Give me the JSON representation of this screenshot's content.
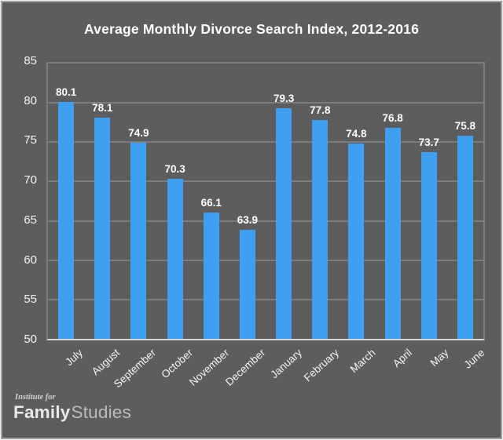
{
  "chart_data": {
    "type": "bar",
    "title": "Average Monthly Divorce Search Index, 2012-2016",
    "categories": [
      "July",
      "August",
      "September",
      "October",
      "November",
      "December",
      "January",
      "February",
      "March",
      "April",
      "May",
      "June"
    ],
    "values": [
      80.1,
      78.1,
      74.9,
      70.3,
      66.1,
      63.9,
      79.3,
      77.8,
      74.8,
      76.8,
      73.7,
      75.8
    ],
    "xlabel": "",
    "ylabel": "",
    "ylim": [
      50,
      85
    ],
    "ytick_step": 5,
    "yticks": [
      85,
      80,
      75,
      70,
      65,
      60,
      55,
      50
    ],
    "grid": true,
    "legend": false,
    "data_labels": true,
    "x_label_rotation_deg": -42,
    "colors": {
      "bar": "#3f9ff0",
      "background": "#5d5d5d",
      "gridline": "#7c7c7c",
      "axis_line": "#d8d8d8",
      "text": "#ffffff"
    }
  },
  "footer": {
    "logo_institute": "Institute for",
    "logo_family": "Family",
    "logo_studies": "Studies"
  }
}
